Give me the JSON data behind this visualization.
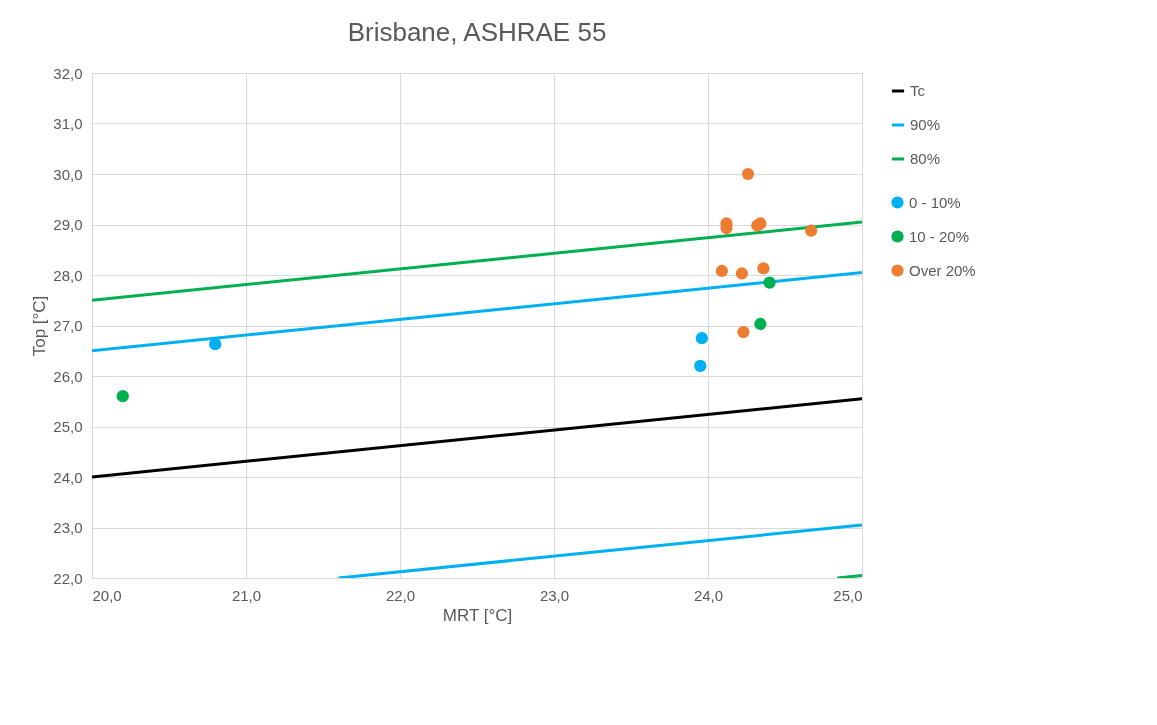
{
  "chart_data": {
    "type": "scatter",
    "title": "Brisbane, ASHRAE 55",
    "xlabel": "MRT [°C]",
    "ylabel": "Top [°C]",
    "xlim": [
      20,
      25
    ],
    "ylim": [
      22,
      32
    ],
    "xticks": [
      {
        "value": 20,
        "label": "20,0"
      },
      {
        "value": 21,
        "label": "21,0"
      },
      {
        "value": 22,
        "label": "22,0"
      },
      {
        "value": 23,
        "label": "23,0"
      },
      {
        "value": 24,
        "label": "24,0"
      },
      {
        "value": 25,
        "label": "25,0"
      }
    ],
    "yticks": [
      {
        "value": 22,
        "label": "22,0"
      },
      {
        "value": 23,
        "label": "23,0"
      },
      {
        "value": 24,
        "label": "24,0"
      },
      {
        "value": 25,
        "label": "25,0"
      },
      {
        "value": 26,
        "label": "26,0"
      },
      {
        "value": 27,
        "label": "27,0"
      },
      {
        "value": 28,
        "label": "28,0"
      },
      {
        "value": 29,
        "label": "29,0"
      },
      {
        "value": 30,
        "label": "30,0"
      },
      {
        "value": 31,
        "label": "31,0"
      },
      {
        "value": 32,
        "label": "32,0"
      }
    ],
    "grid": true,
    "legend": "right",
    "series": [
      {
        "name": "Tc",
        "type": "line",
        "color": "#000000",
        "x": [
          20,
          25
        ],
        "values": [
          24.0,
          25.55
        ]
      },
      {
        "name": "90%",
        "type": "line",
        "color": "#00b0f0",
        "x": [
          20,
          25
        ],
        "values": [
          26.5,
          28.05
        ]
      },
      {
        "name": "80%",
        "type": "line",
        "color": "#00b050",
        "x": [
          20,
          25
        ],
        "values": [
          27.5,
          29.05
        ]
      },
      {
        "type": "line",
        "color": "#00b0f0",
        "x": [
          21.6,
          25
        ],
        "values": [
          22.0,
          23.05
        ]
      },
      {
        "type": "line",
        "color": "#00b050",
        "x": [
          24.84,
          25
        ],
        "values": [
          22.0,
          22.05
        ]
      },
      {
        "name": "0 - 10%",
        "type": "scatter",
        "color": "#00b0f0",
        "x": [
          20.8,
          23.96,
          23.95
        ],
        "values": [
          26.63,
          26.75,
          26.2
        ]
      },
      {
        "name": "10 - 20%",
        "type": "scatter",
        "color": "#00b050",
        "x": [
          20.2,
          24.34,
          24.4
        ],
        "values": [
          25.6,
          27.03,
          27.85
        ]
      },
      {
        "name": "Over 20%",
        "type": "scatter",
        "color": "#ed7d31",
        "x": [
          24.26,
          24.12,
          24.12,
          24.34,
          24.32,
          24.67,
          24.09,
          24.22,
          24.36,
          24.23
        ],
        "values": [
          30.0,
          29.02,
          28.93,
          29.02,
          28.98,
          28.88,
          28.08,
          28.03,
          28.13,
          26.87
        ]
      }
    ]
  }
}
